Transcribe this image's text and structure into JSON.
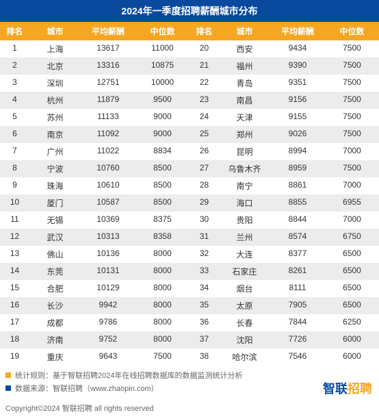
{
  "title": "2024年一季度招聘薪酬城市分布",
  "columns": [
    "排名",
    "城市",
    "平均薪酬",
    "中位数"
  ],
  "left": [
    {
      "rank": "1",
      "city": "上海",
      "salary": "13617",
      "median": "11000"
    },
    {
      "rank": "2",
      "city": "北京",
      "salary": "13316",
      "median": "10875"
    },
    {
      "rank": "3",
      "city": "深圳",
      "salary": "12751",
      "median": "10000"
    },
    {
      "rank": "4",
      "city": "杭州",
      "salary": "11879",
      "median": "9500"
    },
    {
      "rank": "5",
      "city": "苏州",
      "salary": "11133",
      "median": "9000"
    },
    {
      "rank": "6",
      "city": "南京",
      "salary": "11092",
      "median": "9000"
    },
    {
      "rank": "7",
      "city": "广州",
      "salary": "11022",
      "median": "8834"
    },
    {
      "rank": "8",
      "city": "宁波",
      "salary": "10760",
      "median": "8500"
    },
    {
      "rank": "9",
      "city": "珠海",
      "salary": "10610",
      "median": "8500"
    },
    {
      "rank": "10",
      "city": "厦门",
      "salary": "10587",
      "median": "8500"
    },
    {
      "rank": "11",
      "city": "无锡",
      "salary": "10369",
      "median": "8375"
    },
    {
      "rank": "12",
      "city": "武汉",
      "salary": "10313",
      "median": "8358"
    },
    {
      "rank": "13",
      "city": "佛山",
      "salary": "10136",
      "median": "8000"
    },
    {
      "rank": "14",
      "city": "东莞",
      "salary": "10131",
      "median": "8000"
    },
    {
      "rank": "15",
      "city": "合肥",
      "salary": "10129",
      "median": "8000"
    },
    {
      "rank": "16",
      "city": "长沙",
      "salary": "9942",
      "median": "8000"
    },
    {
      "rank": "17",
      "city": "成都",
      "salary": "9786",
      "median": "8000"
    },
    {
      "rank": "18",
      "city": "济南",
      "salary": "9752",
      "median": "8000"
    },
    {
      "rank": "19",
      "city": "重庆",
      "salary": "9643",
      "median": "7500"
    }
  ],
  "right": [
    {
      "rank": "20",
      "city": "西安",
      "salary": "9434",
      "median": "7500"
    },
    {
      "rank": "21",
      "city": "福州",
      "salary": "9390",
      "median": "7500"
    },
    {
      "rank": "22",
      "city": "青岛",
      "salary": "9351",
      "median": "7500"
    },
    {
      "rank": "23",
      "city": "南昌",
      "salary": "9156",
      "median": "7500"
    },
    {
      "rank": "24",
      "city": "天津",
      "salary": "9155",
      "median": "7500"
    },
    {
      "rank": "25",
      "city": "郑州",
      "salary": "9026",
      "median": "7500"
    },
    {
      "rank": "26",
      "city": "昆明",
      "salary": "8994",
      "median": "7000"
    },
    {
      "rank": "27",
      "city": "乌鲁木齐",
      "salary": "8959",
      "median": "7500"
    },
    {
      "rank": "28",
      "city": "南宁",
      "salary": "8861",
      "median": "7000"
    },
    {
      "rank": "29",
      "city": "海口",
      "salary": "8855",
      "median": "6955"
    },
    {
      "rank": "30",
      "city": "贵阳",
      "salary": "8844",
      "median": "7000"
    },
    {
      "rank": "31",
      "city": "兰州",
      "salary": "8574",
      "median": "6750"
    },
    {
      "rank": "32",
      "city": "大连",
      "salary": "8377",
      "median": "6500"
    },
    {
      "rank": "33",
      "city": "石家庄",
      "salary": "8261",
      "median": "6500"
    },
    {
      "rank": "34",
      "city": "烟台",
      "salary": "8111",
      "median": "6500"
    },
    {
      "rank": "35",
      "city": "太原",
      "salary": "7905",
      "median": "6500"
    },
    {
      "rank": "36",
      "city": "长春",
      "salary": "7844",
      "median": "6250"
    },
    {
      "rank": "37",
      "city": "沈阳",
      "salary": "7726",
      "median": "6000"
    },
    {
      "rank": "38",
      "city": "哈尔滨",
      "salary": "7546",
      "median": "6000"
    }
  ],
  "footer": {
    "stat_rule_label": "统计规则：",
    "stat_rule_text": "基于智联招聘2024年在线招聘数据库的数据监测统计分析",
    "source_label": "数据来源：",
    "source_text": "智联招聘（www.zhaopin.com）",
    "brand_1": "智联",
    "brand_2": "招聘",
    "copyright": "Copyright©2024 智联招聘 all rights reserved"
  },
  "style": {
    "title_bg": "#0a4a9e",
    "header_bg": "#f5a623",
    "row_alt_bg": "#ececec"
  }
}
